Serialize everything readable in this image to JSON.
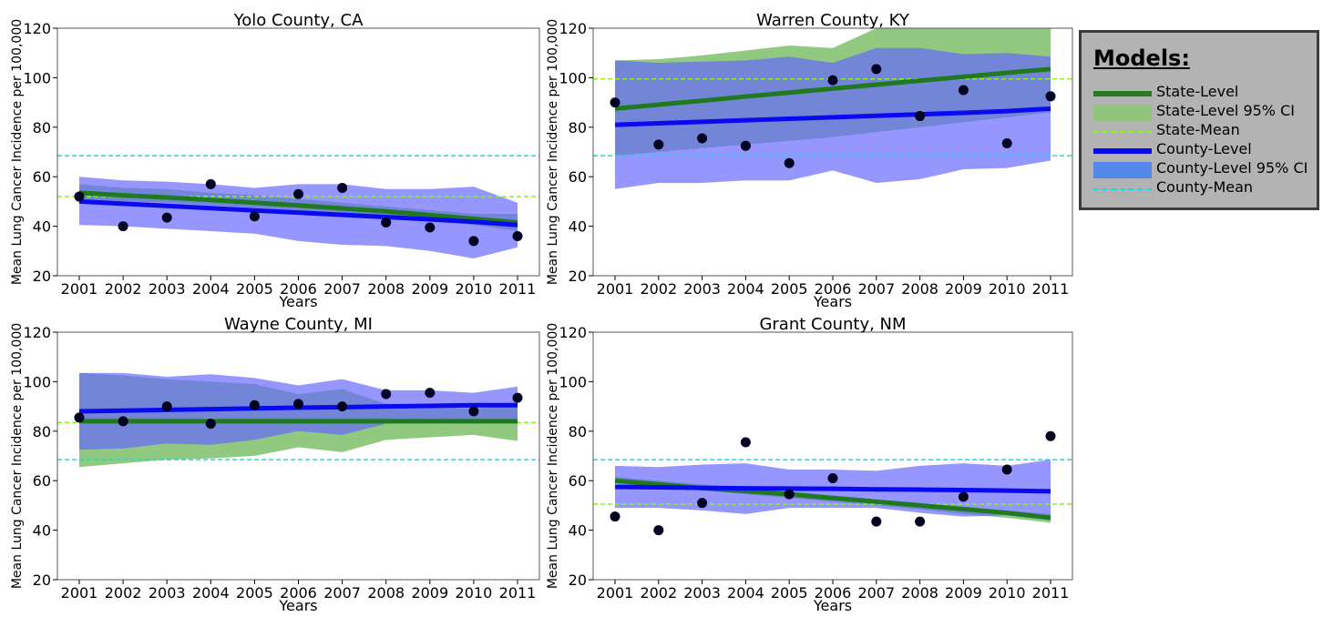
{
  "colors": {
    "state_line": "#1f7a1f",
    "state_ci": "#7fc06a",
    "state_mean": "#7fff00",
    "county_line": "#0a0af0",
    "county_ci": "#6464ff",
    "county_mean": "#00e5e5",
    "point": "#000020"
  },
  "legend": {
    "title": "Models:",
    "items": [
      {
        "label": "State-Level",
        "style": "line",
        "color": "#2a7a22"
      },
      {
        "label": "State-Level 95% CI",
        "style": "fill",
        "color": "#8fc47a"
      },
      {
        "label": "State-Mean",
        "style": "dashed",
        "color": "#7fff00"
      },
      {
        "label": "County-Level",
        "style": "line",
        "color": "#0a0af0"
      },
      {
        "label": "County-Level 95% CI",
        "style": "fill",
        "color": "#5288e8"
      },
      {
        "label": "County-Mean",
        "style": "dashed",
        "color": "#00e5e5"
      }
    ]
  },
  "chart_data": [
    {
      "type": "line",
      "title": "Yolo County, CA",
      "xlabel": "Years",
      "ylabel": "Mean Lung Cancer Incidence per 100,000",
      "x": [
        2001,
        2002,
        2003,
        2004,
        2005,
        2006,
        2007,
        2008,
        2009,
        2010,
        2011
      ],
      "ylim": [
        20,
        120
      ],
      "yticks": [
        20,
        40,
        60,
        80,
        100,
        120
      ],
      "observed": [
        52,
        40,
        43.5,
        57,
        44,
        53,
        55.5,
        41.5,
        39.5,
        34,
        36
      ],
      "state_level": [
        53.5,
        52.5,
        51.6,
        50.6,
        49.5,
        48.4,
        47.2,
        46,
        44.5,
        43,
        41.5
      ],
      "state_ci_lower": [
        50.5,
        50,
        49.5,
        48.5,
        47.5,
        46.5,
        45,
        43.5,
        42,
        40.5,
        38
      ],
      "state_ci_upper": [
        57,
        55.5,
        55,
        53.5,
        52.5,
        51,
        49.5,
        48,
        46.5,
        45,
        45
      ],
      "county_level": [
        50,
        49.1,
        48.2,
        47.3,
        46.4,
        45.5,
        44.6,
        43.7,
        42.8,
        41.8,
        40.5
      ],
      "county_ci_lower": [
        40.5,
        40,
        39,
        38,
        37,
        34,
        32.5,
        32,
        30,
        27,
        31.5
      ],
      "county_ci_upper": [
        60,
        58.5,
        58,
        57,
        55.5,
        57,
        57,
        55,
        55,
        56,
        49.5
      ],
      "state_mean": 52,
      "county_mean": 68.5
    },
    {
      "type": "line",
      "title": "Warren County, KY",
      "xlabel": "Years",
      "ylabel": "Mean Lung Cancer Incidence per 100,000",
      "x": [
        2001,
        2002,
        2003,
        2004,
        2005,
        2006,
        2007,
        2008,
        2009,
        2010,
        2011
      ],
      "ylim": [
        20,
        120
      ],
      "yticks": [
        20,
        40,
        60,
        80,
        100,
        120
      ],
      "observed": [
        90,
        73,
        75.5,
        72.5,
        65.5,
        99,
        103.5,
        84.5,
        95,
        73.5,
        92.5
      ],
      "state_level": [
        87.5,
        89.1,
        90.7,
        92.4,
        94,
        95.6,
        97.2,
        98.8,
        100.4,
        102,
        103.5
      ],
      "state_ci_lower": [
        68.5,
        70,
        71.5,
        73,
        74.5,
        76,
        78,
        80,
        82,
        84,
        86
      ],
      "state_ci_upper": [
        107,
        107.5,
        109,
        111,
        113,
        112,
        120,
        120,
        120,
        120,
        120
      ],
      "county_level": [
        81,
        81.6,
        82.2,
        82.8,
        83.4,
        84,
        84.6,
        85.2,
        85.8,
        86.5,
        87.5
      ],
      "county_ci_lower": [
        55,
        57.5,
        57.5,
        58.5,
        58.5,
        62.5,
        57.5,
        59,
        63,
        63.5,
        66.5
      ],
      "county_ci_upper": [
        107,
        106,
        106.5,
        107,
        108.5,
        106,
        112,
        112,
        109.5,
        110,
        108.5
      ],
      "state_mean": 99.5,
      "county_mean": 68.5
    },
    {
      "type": "line",
      "title": "Wayne County, MI",
      "xlabel": "Years",
      "ylabel": "Mean Lung Cancer Incidence per 100,000",
      "x": [
        2001,
        2002,
        2003,
        2004,
        2005,
        2006,
        2007,
        2008,
        2009,
        2010,
        2011
      ],
      "ylim": [
        20,
        120
      ],
      "yticks": [
        20,
        40,
        60,
        80,
        100,
        120
      ],
      "observed": [
        85.5,
        84,
        90,
        83,
        90.5,
        91,
        90,
        95,
        95.5,
        88,
        93.5
      ],
      "state_level": [
        84,
        84,
        84,
        84,
        84,
        84,
        84,
        84,
        84,
        84,
        84
      ],
      "state_ci_lower": [
        65.5,
        67,
        68.5,
        69,
        70,
        73.5,
        71.5,
        76.5,
        77.5,
        78.5,
        76
      ],
      "state_ci_upper": [
        103.5,
        102.5,
        101,
        100,
        99,
        95,
        97,
        91,
        90,
        89,
        91
      ],
      "county_level": [
        88,
        88.3,
        88.6,
        88.9,
        89.2,
        89.5,
        89.7,
        90,
        90.2,
        90.5,
        90.5
      ],
      "county_ci_lower": [
        72.5,
        73,
        75,
        74.5,
        76.5,
        80,
        78.5,
        83,
        84,
        84,
        84
      ],
      "county_ci_upper": [
        103.5,
        103.5,
        102,
        103,
        101.5,
        98.5,
        101,
        96.5,
        96.5,
        95.5,
        98
      ],
      "state_mean": 83.5,
      "county_mean": 68.5
    },
    {
      "type": "line",
      "title": "Grant County, NM",
      "xlabel": "Years",
      "ylabel": "Mean Lung Cancer Incidence per 100,000",
      "x": [
        2001,
        2002,
        2003,
        2004,
        2005,
        2006,
        2007,
        2008,
        2009,
        2010,
        2011
      ],
      "ylim": [
        20,
        120
      ],
      "yticks": [
        20,
        40,
        60,
        80,
        100,
        120
      ],
      "observed": [
        45.5,
        40,
        51,
        75.5,
        54.5,
        61,
        43.5,
        43.5,
        53.5,
        64.5,
        78
      ],
      "state_level": [
        60,
        58.5,
        57,
        55.8,
        54.5,
        53,
        51.5,
        50,
        48.5,
        47,
        45
      ],
      "state_ci_lower": [
        59,
        57.5,
        56,
        54.5,
        53,
        51.5,
        50,
        48.5,
        46.5,
        45,
        43
      ],
      "state_ci_upper": [
        61.5,
        60,
        58.5,
        57,
        55.5,
        54,
        52.5,
        51,
        49.5,
        48,
        46.5
      ],
      "county_level": [
        57.5,
        57.3,
        57.1,
        56.9,
        56.8,
        56.7,
        56.5,
        56.4,
        56.2,
        56,
        55.7
      ],
      "county_ci_lower": [
        49,
        49,
        48,
        46.5,
        49,
        49,
        49,
        47,
        45.5,
        46,
        44
      ],
      "county_ci_upper": [
        66,
        65.5,
        66.5,
        67,
        64.5,
        64.5,
        64,
        66,
        67,
        66,
        68.5
      ],
      "state_mean": 50.5,
      "county_mean": 68.5
    }
  ]
}
